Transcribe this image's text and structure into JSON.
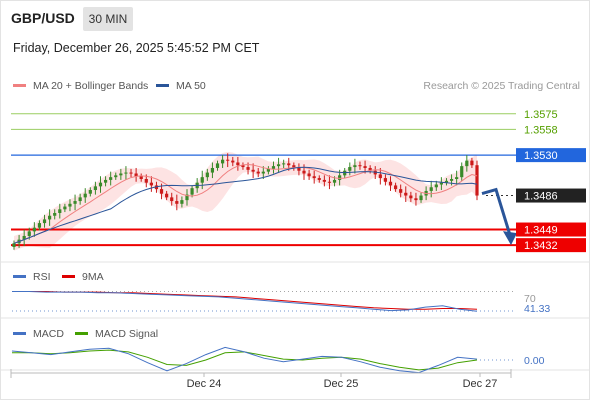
{
  "header": {
    "symbol": "GBP/USD",
    "timeframe": "30 MIN",
    "datetime": "Friday, December 26, 2025 5:45:52 PM CET"
  },
  "legend": {
    "items": [
      {
        "label": "MA 20 + Bollinger Bands",
        "color": "#f08080"
      },
      {
        "label": "MA 50",
        "color": "#2a5599"
      }
    ],
    "research": "Research © 2025 Trading Central"
  },
  "rsi_legend": {
    "items": [
      {
        "label": "RSI",
        "color": "#4472c4"
      },
      {
        "label": "9MA",
        "color": "#dd0000"
      }
    ]
  },
  "macd_legend": {
    "items": [
      {
        "label": "MACD",
        "color": "#4472c4"
      },
      {
        "label": "MACD Signal",
        "color": "#44a000"
      }
    ]
  },
  "colors": {
    "up": "#3a8a2a",
    "down": "#cc1a1a",
    "resistance_green": "#9acd60",
    "support_red": "#ee0000",
    "pivot_blue": "#2266dd",
    "current": "#222222"
  },
  "chart_data": [
    {
      "type": "candlestick",
      "title": "GBP/USD",
      "x_ticks": [
        "Dec 24",
        "Dec 25",
        "Dec 27"
      ],
      "ylim": [
        1.3418,
        1.359
      ],
      "levels": [
        {
          "value": "1.3575",
          "kind": "resistance"
        },
        {
          "value": "1.3558",
          "kind": "resistance"
        },
        {
          "value": "1.3530",
          "kind": "pivot"
        },
        {
          "value": "1.3486",
          "kind": "current"
        },
        {
          "value": "1.3449",
          "kind": "support"
        },
        {
          "value": "1.3432",
          "kind": "support"
        }
      ],
      "projection": "down from 1.3486 toward 1.3432",
      "close": [
        1.3434,
        1.3438,
        1.3442,
        1.3447,
        1.3451,
        1.3456,
        1.346,
        1.3464,
        1.3467,
        1.3471,
        1.3474,
        1.3477,
        1.348,
        1.3484,
        1.3488,
        1.3492,
        1.3496,
        1.35,
        1.3503,
        1.3506,
        1.3508,
        1.351,
        1.3511,
        1.351,
        1.3507,
        1.3504,
        1.35,
        1.3497,
        1.3493,
        1.3488,
        1.3484,
        1.348,
        1.3477,
        1.3481,
        1.3487,
        1.3494,
        1.35,
        1.3506,
        1.3511,
        1.3516,
        1.3521,
        1.3525,
        1.3524,
        1.3522,
        1.3519,
        1.3517,
        1.3514,
        1.3512,
        1.351,
        1.3512,
        1.3515,
        1.3518,
        1.352,
        1.3521,
        1.3519,
        1.3516,
        1.3513,
        1.351,
        1.3507,
        1.3505,
        1.3503,
        1.3501,
        1.35,
        1.3503,
        1.3508,
        1.3513,
        1.3517,
        1.3519,
        1.3518,
        1.3516,
        1.3513,
        1.3509,
        1.3505,
        1.3501,
        1.3497,
        1.3493,
        1.3489,
        1.3486,
        1.3483,
        1.3481,
        1.3486,
        1.3491,
        1.3495,
        1.3498,
        1.35,
        1.3502,
        1.3504,
        1.3506,
        1.3518,
        1.3524,
        1.3519,
        1.3486
      ]
    },
    {
      "type": "line",
      "title": "RSI",
      "y_ticks": [
        "70"
      ],
      "last_value": "41.33",
      "series": [
        {
          "name": "RSI",
          "values": [
            70,
            70,
            69,
            69,
            69,
            68,
            68,
            67,
            66,
            65,
            64,
            63,
            62,
            60,
            58,
            56,
            54,
            52,
            50,
            48,
            46,
            44,
            42,
            43,
            47,
            49,
            44,
            41
          ]
        },
        {
          "name": "9MA",
          "values": [
            70,
            70,
            70,
            69,
            69,
            69,
            68,
            68,
            67,
            66,
            65,
            64,
            63,
            62,
            60,
            58,
            56,
            54,
            52,
            50,
            48,
            46,
            45,
            44,
            44,
            45,
            45,
            44
          ]
        }
      ]
    },
    {
      "type": "line",
      "title": "MACD",
      "y_ticks": [
        "0.00"
      ],
      "series": [
        {
          "name": "MACD",
          "values": [
            0.001,
            0.0008,
            0.0006,
            0.0009,
            0.0012,
            0.0013,
            0.0007,
            -0.0003,
            -0.0012,
            -0.0004,
            0.0006,
            0.0014,
            0.0009,
            0.0002,
            -0.0002,
            0.0001,
            0.0004,
            0.0003,
            -0.0002,
            -0.0008,
            -0.0012,
            -0.0014,
            -0.0006,
            0.0003,
            0.0001
          ]
        },
        {
          "name": "MACD Signal",
          "values": [
            0.0008,
            0.0008,
            0.0007,
            0.0008,
            0.001,
            0.0011,
            0.0009,
            0.0003,
            -0.0005,
            -0.0006,
            0.0,
            0.0008,
            0.0009,
            0.0005,
            0.0001,
            0.0,
            0.0002,
            0.0003,
            0.0001,
            -0.0004,
            -0.0008,
            -0.0011,
            -0.0009,
            -0.0003,
            0.0
          ]
        }
      ]
    }
  ]
}
